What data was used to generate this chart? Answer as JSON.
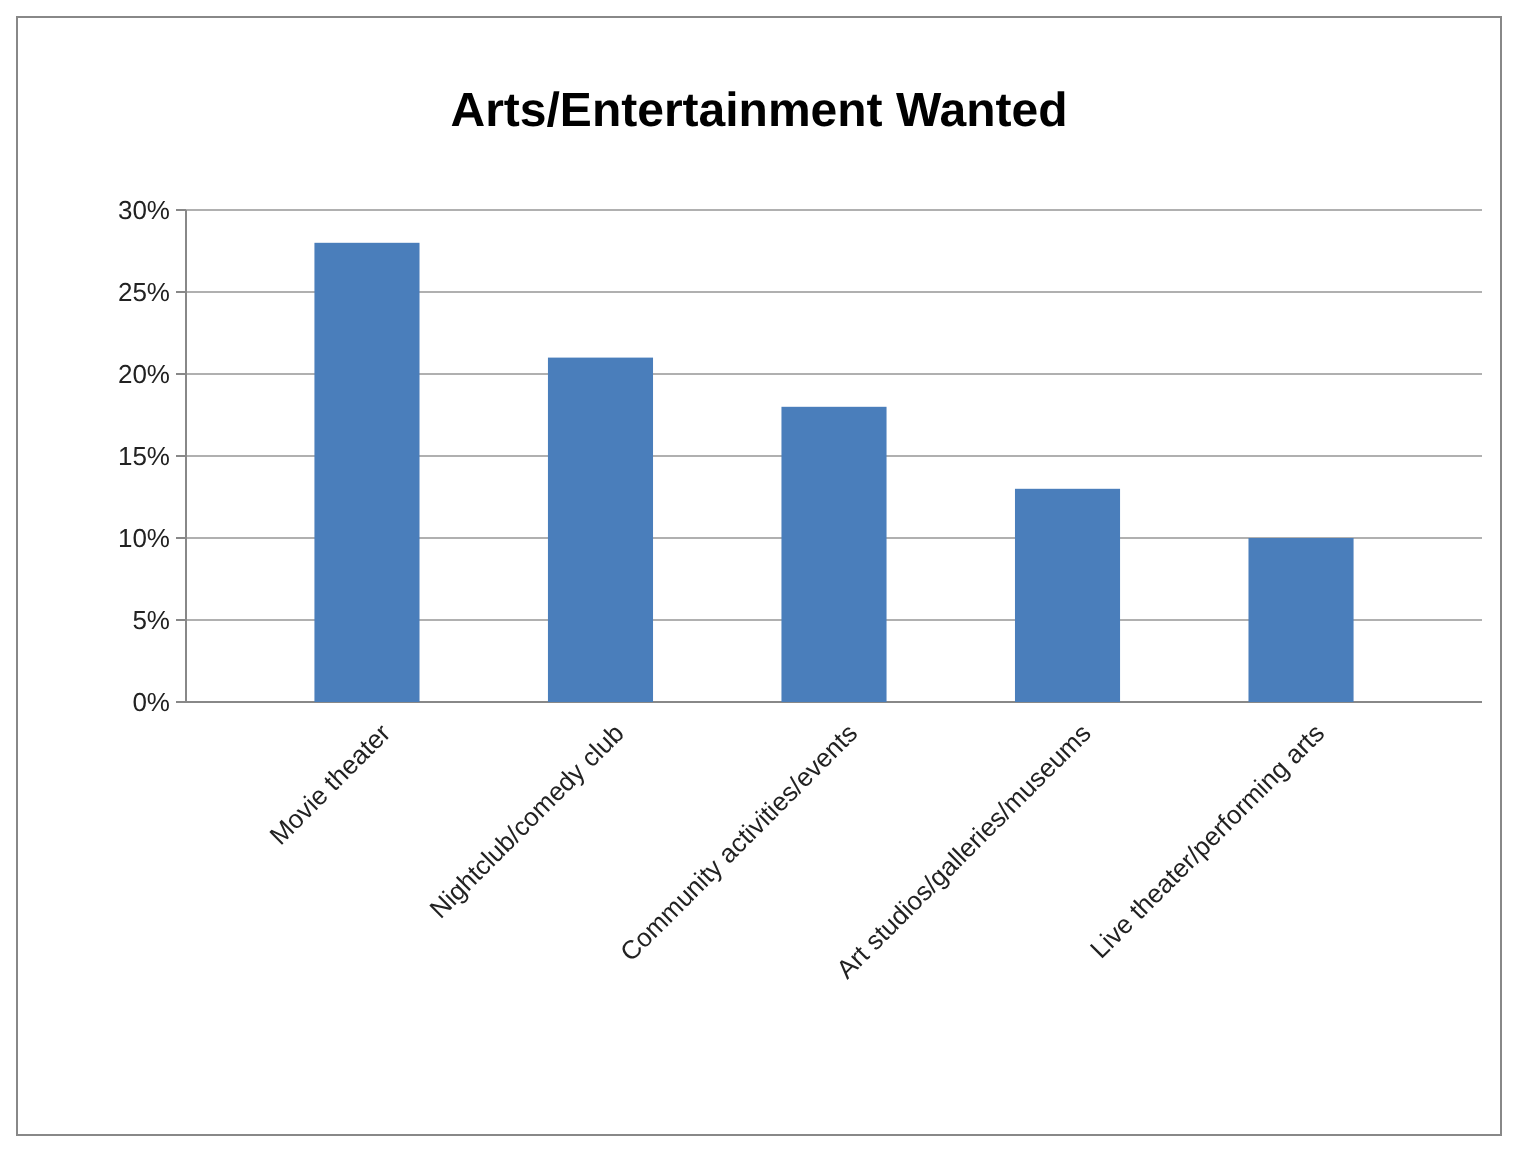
{
  "chart_data": {
    "type": "bar",
    "title": "Arts/Entertainment Wanted",
    "categories": [
      "Movie theater",
      "Nightclub/comedy club",
      "Community activities/events",
      "Art studios/galleries/museums",
      "Live theater/performing arts"
    ],
    "values": [
      28,
      21,
      18,
      13,
      10
    ],
    "color": "#4a7ebb",
    "ylim": [
      0,
      30
    ],
    "yticks": [
      {
        "value": 0,
        "label": "0%"
      },
      {
        "value": 5,
        "label": "5%"
      },
      {
        "value": 10,
        "label": "10%"
      },
      {
        "value": 15,
        "label": "15%"
      },
      {
        "value": 20,
        "label": "20%"
      },
      {
        "value": 25,
        "label": "25%"
      },
      {
        "value": 30,
        "label": "30%"
      }
    ],
    "grid": "y"
  }
}
